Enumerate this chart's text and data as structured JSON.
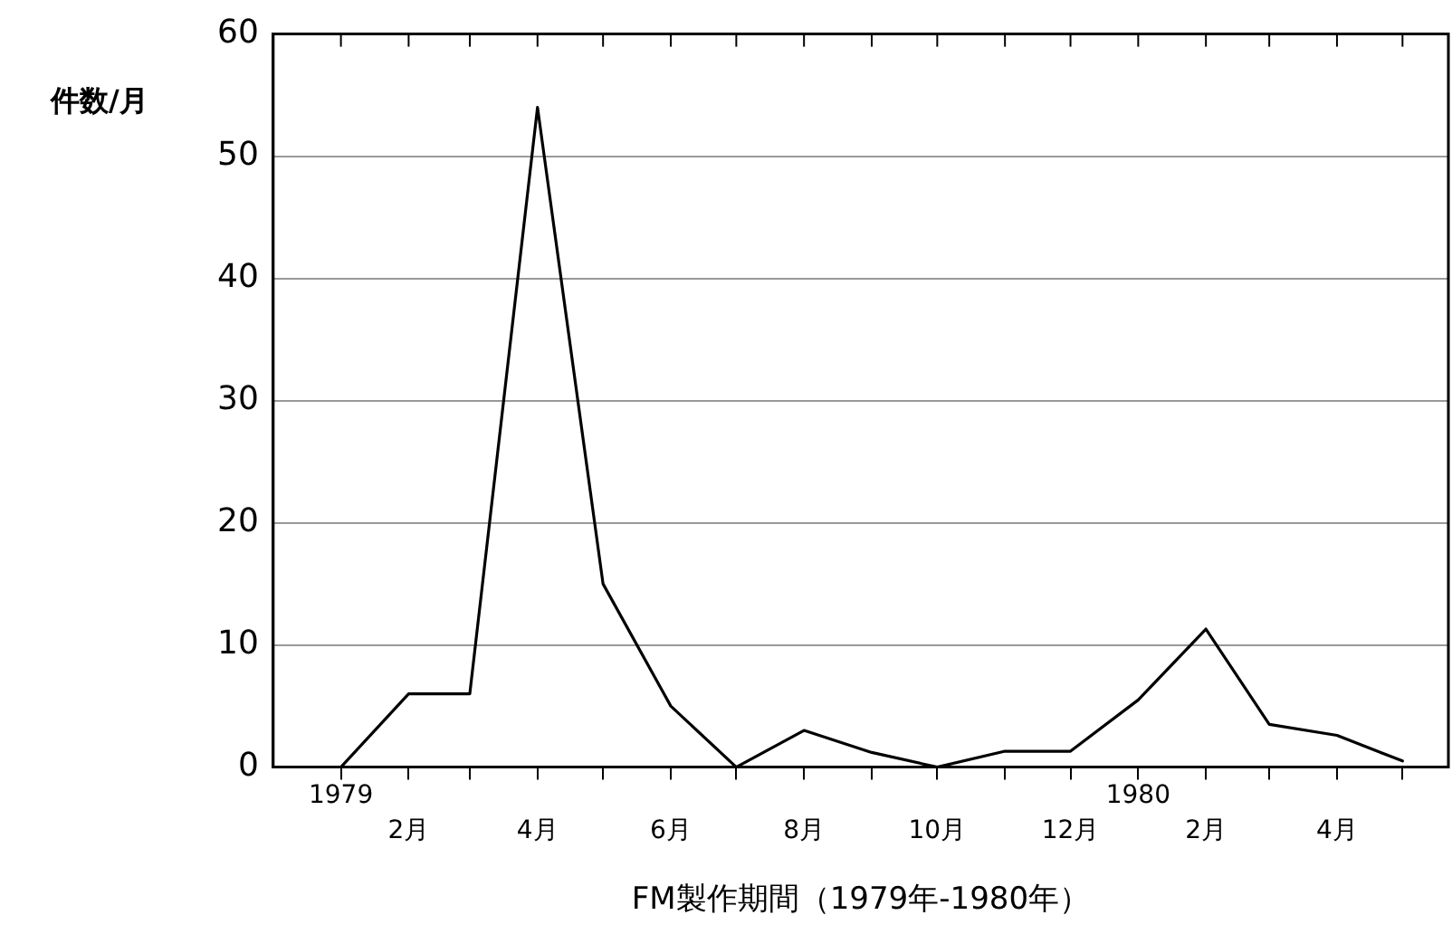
{
  "chart_data": {
    "type": "line",
    "xlabel": "FM製作期間（1979年-1980年）",
    "ylabel": "件数/月",
    "x": [
      "1979-01",
      "1979-02",
      "1979-03",
      "1979-04",
      "1979-05",
      "1979-06",
      "1979-07",
      "1979-08",
      "1979-09",
      "1979-10",
      "1979-11",
      "1979-12",
      "1980-01",
      "1980-02",
      "1980-03",
      "1980-04",
      "1980-05"
    ],
    "values": [
      0,
      6,
      6,
      54,
      15,
      5,
      0,
      3,
      1.2,
      0,
      1.3,
      1.3,
      5.5,
      11.3,
      3.5,
      2.6,
      0.5
    ],
    "color": "#000000",
    "marker": "none",
    "line_style": "solid",
    "xlim": [
      "1978-12",
      "1980-05-22"
    ],
    "annotations": [
      "1979",
      "1980"
    ],
    "xticks": [
      {
        "value": "1979-01",
        "label": null
      },
      {
        "value": "1979-02",
        "label": "2月"
      },
      {
        "value": "1979-03",
        "label": null
      },
      {
        "value": "1979-04",
        "label": "4月"
      },
      {
        "value": "1979-05",
        "label": null
      },
      {
        "value": "1979-06",
        "label": "6月"
      },
      {
        "value": "1979-07",
        "label": null
      },
      {
        "value": "1979-08",
        "label": "8月"
      },
      {
        "value": "1979-09",
        "label": null
      },
      {
        "value": "1979-10",
        "label": "10月"
      },
      {
        "value": "1979-11",
        "label": null
      },
      {
        "value": "1979-12",
        "label": "12月"
      },
      {
        "value": "1980-01",
        "label": null
      },
      {
        "value": "1980-02",
        "label": "2月"
      },
      {
        "value": "1980-03",
        "label": null
      },
      {
        "value": "1980-04",
        "label": "4月"
      },
      {
        "value": "1980-05",
        "label": null
      }
    ],
    "ylim": [
      0,
      60
    ],
    "yticks": [
      0,
      10,
      20,
      30,
      40,
      50,
      60
    ],
    "grid": "y",
    "legend": false
  }
}
